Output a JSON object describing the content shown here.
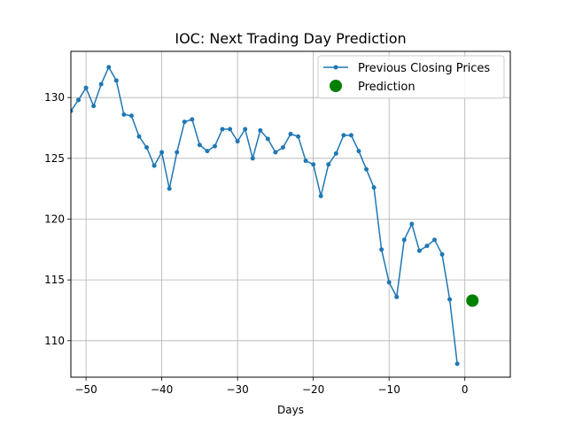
{
  "chart_data": {
    "type": "line",
    "title": "IOC: Next Trading Day Prediction",
    "xlabel": "Days",
    "ylabel": "",
    "xlim": [
      -52,
      6
    ],
    "ylim": [
      107,
      133.8
    ],
    "xticks": [
      -50,
      -40,
      -30,
      -20,
      -10,
      0
    ],
    "xtick_labels": [
      "−50",
      "−40",
      "−30",
      "−20",
      "−10",
      "0"
    ],
    "yticks": [
      110,
      115,
      120,
      125,
      130
    ],
    "ytick_labels": [
      "110",
      "115",
      "120",
      "125",
      "130"
    ],
    "grid": true,
    "legend_position": "top-right",
    "series": [
      {
        "name": "Previous Closing Prices",
        "color": "#1f77b4",
        "marker": "point",
        "x": [
          -52,
          -51,
          -50,
          -49,
          -48,
          -47,
          -46,
          -45,
          -44,
          -43,
          -42,
          -41,
          -40,
          -39,
          -38,
          -37,
          -36,
          -35,
          -34,
          -33,
          -32,
          -31,
          -30,
          -29,
          -28,
          -27,
          -26,
          -25,
          -24,
          -23,
          -22,
          -21,
          -20,
          -19,
          -18,
          -17,
          -16,
          -15,
          -14,
          -13,
          -12,
          -11,
          -10,
          -9,
          -8,
          -7,
          -6,
          -5,
          -4,
          -3,
          -2,
          -1
        ],
        "values": [
          128.9,
          129.8,
          130.8,
          129.3,
          131.1,
          132.5,
          131.4,
          128.6,
          128.5,
          126.8,
          125.9,
          124.4,
          125.5,
          122.5,
          125.5,
          128.0,
          128.2,
          126.1,
          125.6,
          126.0,
          127.4,
          127.4,
          126.4,
          127.4,
          125.0,
          127.3,
          126.6,
          125.5,
          125.9,
          127.0,
          126.8,
          124.8,
          124.5,
          121.9,
          124.5,
          125.4,
          126.9,
          126.9,
          125.6,
          124.1,
          122.6,
          117.5,
          114.8,
          113.6,
          118.3,
          119.6,
          117.4,
          117.8,
          118.3,
          117.1,
          113.4,
          108.1
        ]
      },
      {
        "name": "Prediction",
        "color": "#008000",
        "marker": "large-dot",
        "x": [
          1
        ],
        "values": [
          113.3
        ]
      }
    ]
  }
}
